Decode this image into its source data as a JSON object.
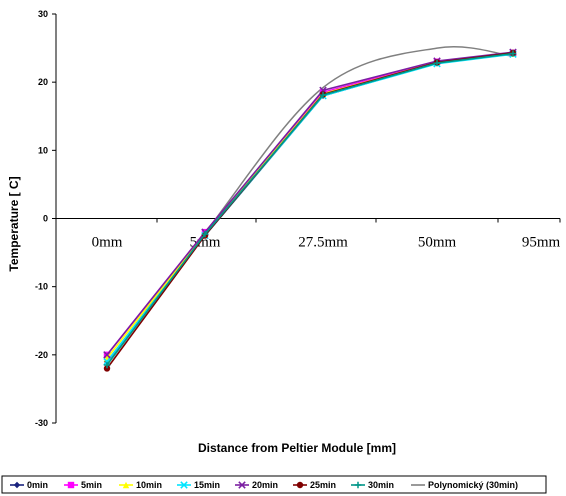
{
  "chart_data": {
    "type": "line",
    "title": "",
    "xlabel": "Distance from Peltier Module [mm]",
    "ylabel": "Temperature [ C]",
    "categories": [
      "0mm",
      "5mm",
      "27.5mm",
      "50mm",
      "95mm"
    ],
    "ylim": [
      -30,
      30
    ],
    "yticks": [
      -30,
      -20,
      -10,
      0,
      10,
      20,
      30
    ],
    "grid": false,
    "legend_position": "bottom",
    "series": [
      {
        "name": "0min",
        "color": "#1a237e",
        "marker": "diamond",
        "values": [
          -21,
          -2.5,
          18,
          22.8,
          24.2
        ]
      },
      {
        "name": "5min",
        "color": "#ff00ff",
        "marker": "square",
        "values": [
          -20,
          -2,
          18.5,
          23,
          24.3
        ]
      },
      {
        "name": "10min",
        "color": "#ffff00",
        "marker": "triangle",
        "values": [
          -20.5,
          -2.2,
          18.3,
          22.9,
          24.2
        ]
      },
      {
        "name": "15min",
        "color": "#00e5ff",
        "marker": "x",
        "values": [
          -21,
          -2.5,
          18,
          22.7,
          24.1
        ]
      },
      {
        "name": "20min",
        "color": "#7b1fa2",
        "marker": "x",
        "values": [
          -20,
          -2,
          18.8,
          23.1,
          24.4
        ]
      },
      {
        "name": "25min",
        "color": "#800000",
        "marker": "circle",
        "values": [
          -22,
          -2.5,
          18.2,
          22.9,
          24.3
        ]
      },
      {
        "name": "30min",
        "color": "#009688",
        "marker": "plus",
        "values": [
          -21.5,
          -2.3,
          18.1,
          22.8,
          24.2
        ]
      }
    ],
    "trendline": {
      "name": "Polynomický (30min)",
      "color": "#808080",
      "values": [
        -21.3,
        -2.1,
        19.2,
        25.0,
        23.8
      ]
    }
  }
}
